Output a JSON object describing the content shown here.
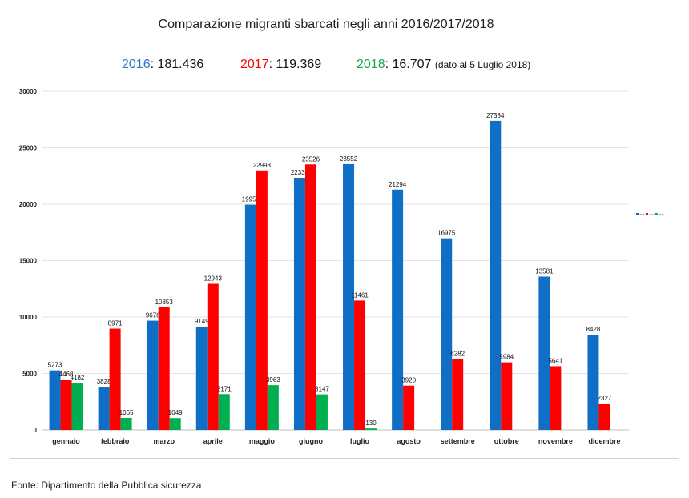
{
  "title": "Comparazione migranti sbarcati negli anni 2016/2017/2018",
  "totals": [
    {
      "year": "2016",
      "sep": ": ",
      "value": "181.436",
      "color": "#2e75c6",
      "note": ""
    },
    {
      "year": "2017",
      "sep": ": ",
      "value": "119.369",
      "color": "#ff0000",
      "note": ""
    },
    {
      "year": "2018",
      "sep": ": ",
      "value": "16.707",
      "color": "#1aa54a",
      "note": "(dato al 5 Luglio 2018)"
    }
  ],
  "source": "Fonte: Dipartimento della Pubblica sicurezza",
  "chart_data": {
    "type": "bar",
    "categories": [
      "gennaio",
      "febbraio",
      "marzo",
      "aprile",
      "maggio",
      "giugno",
      "luglio",
      "agosto",
      "settembre",
      "ottobre",
      "novembre",
      "dicembre"
    ],
    "series": [
      {
        "name": "2016",
        "color": "#0f6fc6",
        "values": [
          5273,
          3828,
          9676,
          9149,
          19957,
          22339,
          23552,
          21294,
          16975,
          27384,
          13581,
          8428
        ]
      },
      {
        "name": "2017",
        "color": "#ff0000",
        "values": [
          4468,
          8971,
          10853,
          12943,
          22993,
          23526,
          11461,
          3920,
          6282,
          5984,
          5641,
          2327
        ]
      },
      {
        "name": "2018",
        "color": "#00b050",
        "values": [
          4182,
          1065,
          1049,
          3171,
          3963,
          3147,
          130,
          null,
          null,
          null,
          null,
          null
        ]
      }
    ],
    "ylim": [
      0,
      30000
    ],
    "yticks": [
      0,
      5000,
      10000,
      15000,
      20000,
      25000,
      30000
    ],
    "grid": true,
    "legend": "right"
  }
}
